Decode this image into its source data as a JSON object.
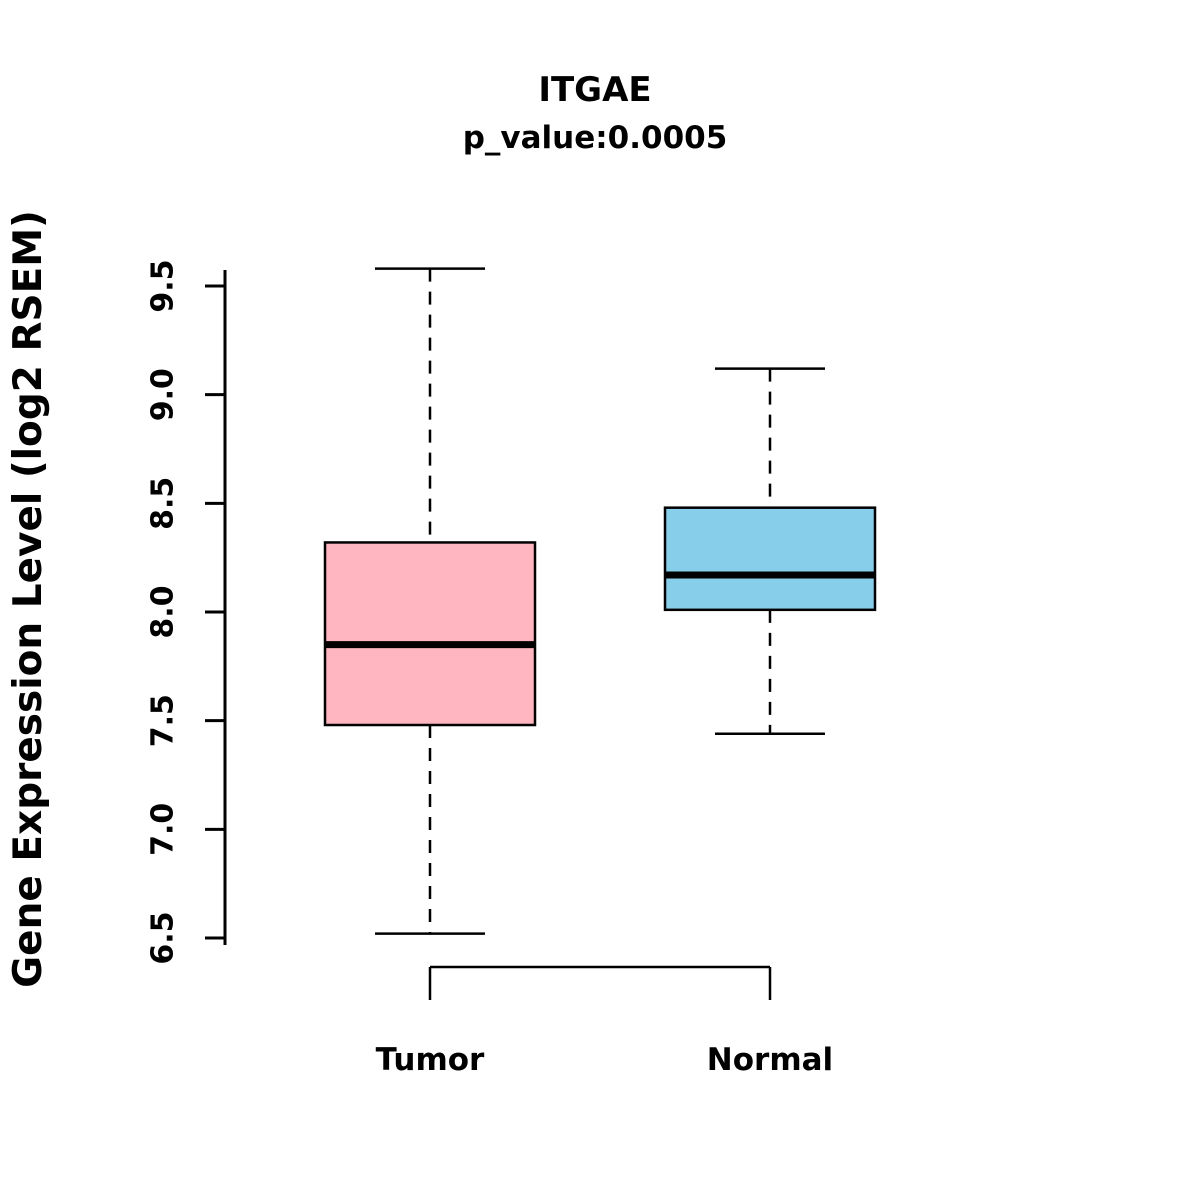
{
  "chart_data": {
    "type": "boxplot",
    "title": "ITGAE",
    "subtitle": "p_value:0.0005",
    "ylabel": "Gene Expression Level (log2 RSEM)",
    "xlabel": "",
    "ylim": [
      6.5,
      9.5
    ],
    "yticks": [
      "6.5",
      "7.0",
      "7.5",
      "8.0",
      "8.5",
      "9.0",
      "9.5"
    ],
    "grid": false,
    "legend": "none",
    "groups": [
      {
        "label": "Tumor",
        "color": "#FFB6C1",
        "min": 6.52,
        "q1": 7.48,
        "median": 7.85,
        "q3": 8.32,
        "max": 9.58
      },
      {
        "label": "Normal",
        "color": "#87CEEB",
        "min": 7.44,
        "q1": 8.01,
        "median": 8.17,
        "q3": 8.48,
        "max": 9.12
      }
    ]
  }
}
